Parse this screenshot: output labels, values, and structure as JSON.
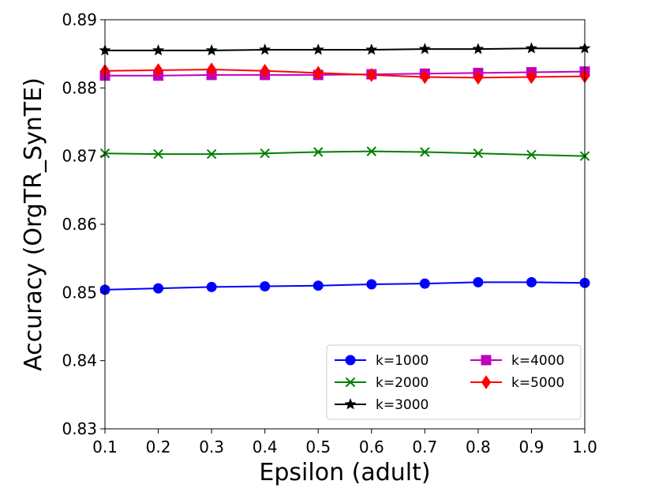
{
  "chart_data": {
    "type": "line",
    "title": "",
    "xlabel": "Epsilon (adult)",
    "ylabel": "Accuracy (OrgTR_SynTE)",
    "x": [
      0.1,
      0.2,
      0.3,
      0.4,
      0.5,
      0.6,
      0.7,
      0.8,
      0.9,
      1.0
    ],
    "xticks": [
      "0.1",
      "0.2",
      "0.3",
      "0.4",
      "0.5",
      "0.6",
      "0.7",
      "0.8",
      "0.9",
      "1.0"
    ],
    "yticks": [
      "0.83",
      "0.84",
      "0.85",
      "0.86",
      "0.87",
      "0.88",
      "0.89"
    ],
    "xlim": [
      0.1,
      1.0
    ],
    "ylim": [
      0.83,
      0.89
    ],
    "grid": false,
    "legend_position": "lower-right",
    "series": [
      {
        "name": "k=1000",
        "color": "#0000ff",
        "marker": "circle",
        "values": [
          0.8504,
          0.8506,
          0.8508,
          0.8509,
          0.851,
          0.8512,
          0.8513,
          0.8515,
          0.8515,
          0.8514
        ]
      },
      {
        "name": "k=2000",
        "color": "#008000",
        "marker": "x",
        "values": [
          0.8704,
          0.8703,
          0.8703,
          0.8704,
          0.8706,
          0.8707,
          0.8706,
          0.8704,
          0.8702,
          0.87
        ]
      },
      {
        "name": "k=3000",
        "color": "#000000",
        "marker": "star",
        "values": [
          0.8855,
          0.8855,
          0.8855,
          0.8856,
          0.8856,
          0.8856,
          0.8857,
          0.8857,
          0.8858,
          0.8858
        ]
      },
      {
        "name": "k=4000",
        "color": "#bf00bf",
        "marker": "square",
        "values": [
          0.8818,
          0.8818,
          0.8819,
          0.8819,
          0.8819,
          0.882,
          0.8821,
          0.8822,
          0.8823,
          0.8824
        ]
      },
      {
        "name": "k=5000",
        "color": "#ff0000",
        "marker": "diamond",
        "values": [
          0.8825,
          0.8826,
          0.8827,
          0.8825,
          0.8822,
          0.8819,
          0.8816,
          0.8815,
          0.8816,
          0.8817
        ]
      }
    ]
  }
}
